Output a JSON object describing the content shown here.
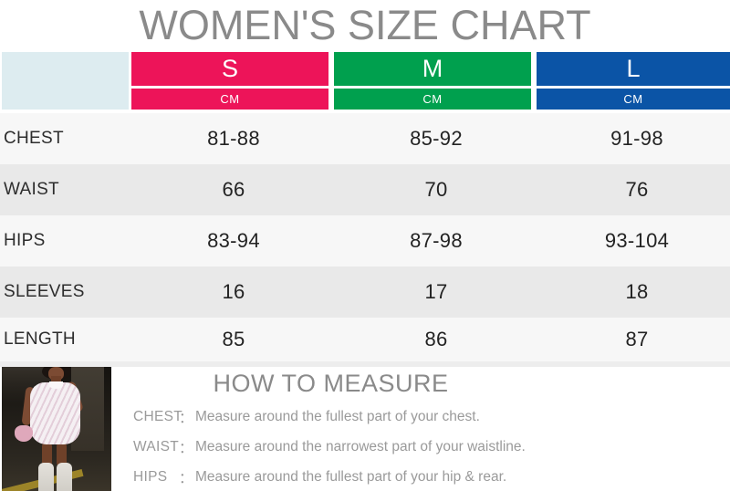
{
  "title": "WOMEN'S SIZE CHART",
  "table": {
    "columns": [
      {
        "size": "S",
        "unit": "CM",
        "color": "#ED1459"
      },
      {
        "size": "M",
        "unit": "CM",
        "color": "#00A04E"
      },
      {
        "size": "L",
        "unit": "CM",
        "color": "#0B54A6"
      }
    ],
    "rows": [
      {
        "label": "CHEST",
        "values": [
          "81-88",
          "85-92",
          "91-98"
        ]
      },
      {
        "label": "WAIST",
        "values": [
          "66",
          "70",
          "76"
        ]
      },
      {
        "label": "HIPS",
        "values": [
          "83-94",
          "87-98",
          "93-104"
        ]
      },
      {
        "label": "SLEEVES",
        "values": [
          "16",
          "17",
          "18"
        ]
      },
      {
        "label": "LENGTH",
        "values": [
          "85",
          "86",
          "87"
        ]
      }
    ]
  },
  "how_to_measure": {
    "heading": "HOW TO MEASURE",
    "colon": "：",
    "items": [
      {
        "label": "CHEST",
        "text": "Measure around the fullest part of your chest."
      },
      {
        "label": "WAIST",
        "text": "Measure around the narrowest part of your waistline."
      },
      {
        "label": "HIPS",
        "text": "Measure around the fullest part of your hip & rear."
      }
    ]
  },
  "photo": {
    "description": "Model wearing a white striped mini dress with white boots and a pink bag"
  },
  "colors": {
    "size_s": "#ED1459",
    "size_m": "#00A04E",
    "size_l": "#0B54A6",
    "header_corner": "#DDECF0",
    "row_light": "#F7F7F7",
    "row_dark": "#E9E9E9",
    "title_gray": "#8A8A8A",
    "text_gray": "#9A9A9A",
    "value_dark": "#2D2D2D"
  },
  "chart_data": {
    "type": "table",
    "title": "WOMEN'S SIZE CHART",
    "unit": "CM",
    "columns": [
      "S",
      "M",
      "L"
    ],
    "rows": [
      {
        "label": "CHEST",
        "values": [
          "81-88",
          "85-92",
          "91-98"
        ]
      },
      {
        "label": "WAIST",
        "values": [
          "66",
          "70",
          "76"
        ]
      },
      {
        "label": "HIPS",
        "values": [
          "83-94",
          "87-98",
          "93-104"
        ]
      },
      {
        "label": "SLEEVES",
        "values": [
          "16",
          "17",
          "18"
        ]
      },
      {
        "label": "LENGTH",
        "values": [
          "85",
          "86",
          "87"
        ]
      }
    ]
  }
}
